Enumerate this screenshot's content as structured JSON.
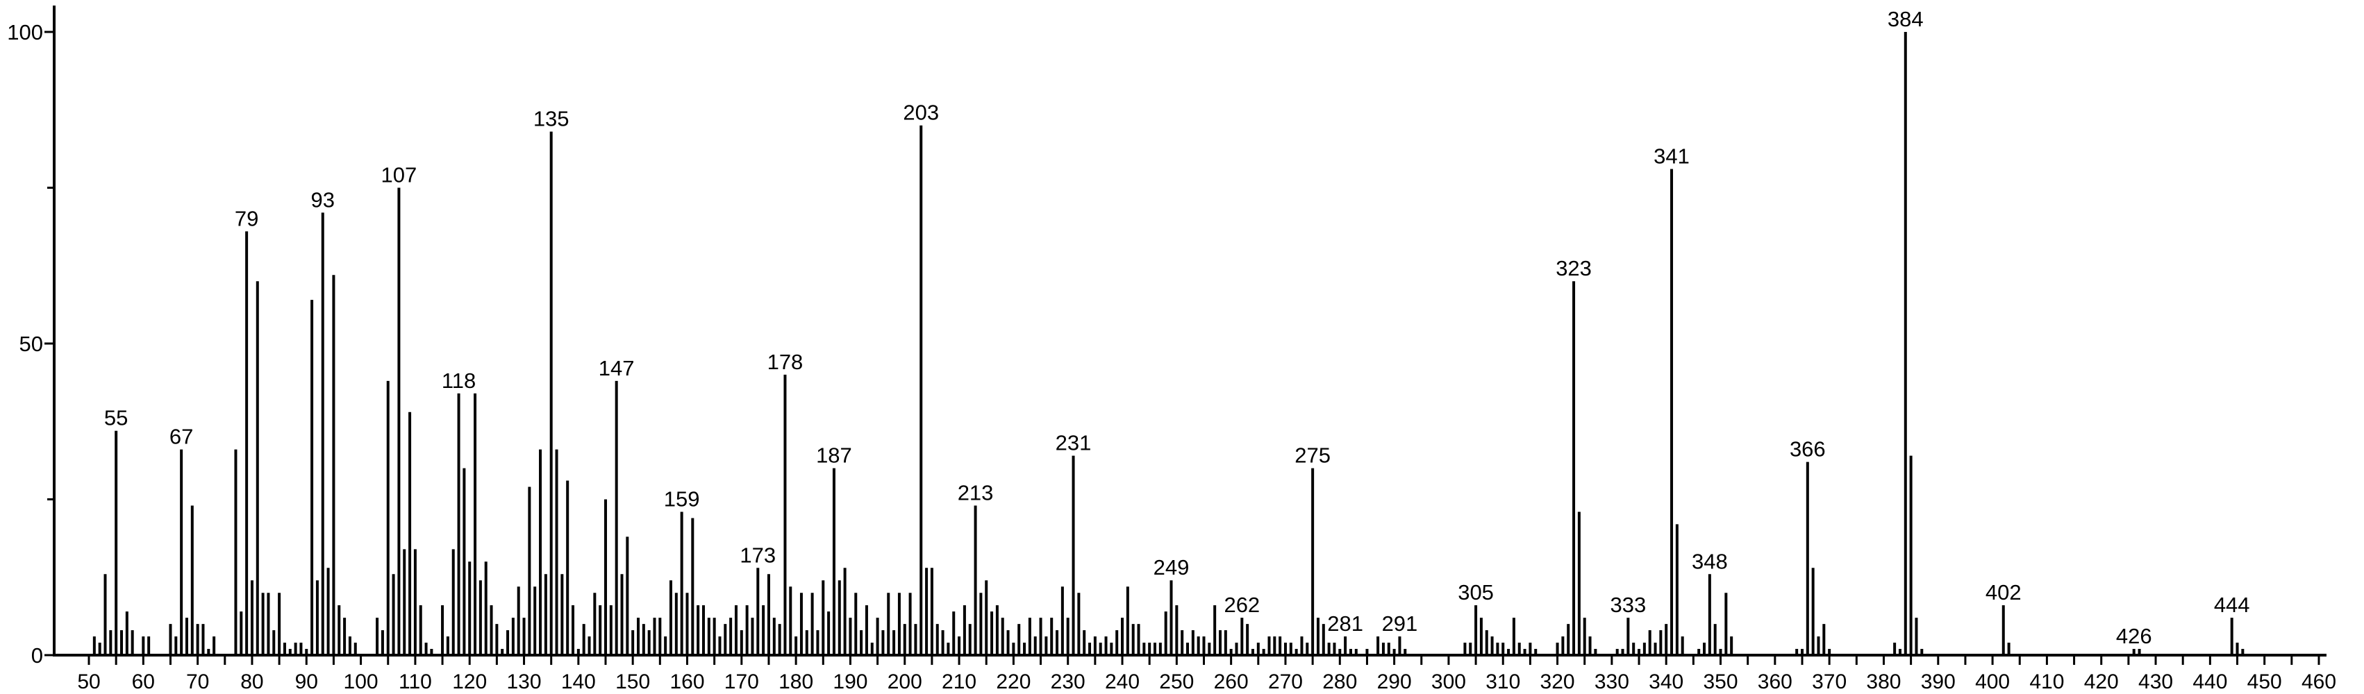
{
  "chart_data": {
    "type": "bar",
    "title": "",
    "xlabel": "",
    "ylabel": "",
    "xlim": [
      40,
      465
    ],
    "ylim": [
      0,
      100
    ],
    "grid": false,
    "legend": "none",
    "bar_color": "#000000",
    "x_ticks": [
      "50",
      "60",
      "70",
      "80",
      "90",
      "100",
      "110",
      "120",
      "130",
      "140",
      "150",
      "160",
      "170",
      "180",
      "190",
      "200",
      "210",
      "220",
      "230",
      "240",
      "250",
      "260",
      "270",
      "280",
      "290",
      "300",
      "310",
      "320",
      "330",
      "340",
      "350",
      "360",
      "370",
      "380",
      "390",
      "400",
      "410",
      "420",
      "430",
      "440",
      "450",
      "460"
    ],
    "y_ticks": [
      "0",
      "50",
      "100"
    ],
    "y_minor_ticks": [
      25,
      75
    ],
    "peaks": {
      "mz": [
        51,
        52,
        53,
        54,
        55,
        56,
        57,
        58,
        60,
        61,
        65,
        66,
        67,
        68,
        69,
        70,
        71,
        72,
        73,
        77,
        78,
        79,
        80,
        81,
        82,
        83,
        84,
        85,
        86,
        87,
        88,
        89,
        90,
        91,
        92,
        93,
        94,
        95,
        96,
        97,
        98,
        99,
        103,
        104,
        105,
        106,
        107,
        108,
        109,
        110,
        111,
        112,
        113,
        115,
        116,
        117,
        118,
        119,
        120,
        121,
        122,
        123,
        124,
        125,
        126,
        127,
        128,
        129,
        130,
        131,
        132,
        133,
        134,
        135,
        136,
        137,
        138,
        139,
        140,
        141,
        142,
        143,
        144,
        145,
        146,
        147,
        148,
        149,
        150,
        151,
        152,
        153,
        154,
        155,
        156,
        157,
        158,
        159,
        160,
        161,
        162,
        163,
        164,
        165,
        166,
        167,
        168,
        169,
        170,
        171,
        172,
        173,
        174,
        175,
        176,
        177,
        178,
        179,
        180,
        181,
        182,
        183,
        184,
        185,
        186,
        187,
        188,
        189,
        190,
        191,
        192,
        193,
        194,
        195,
        196,
        197,
        198,
        199,
        200,
        201,
        202,
        203,
        204,
        205,
        206,
        207,
        208,
        209,
        210,
        211,
        212,
        213,
        214,
        215,
        216,
        217,
        218,
        219,
        220,
        221,
        222,
        223,
        224,
        225,
        226,
        227,
        228,
        229,
        230,
        231,
        232,
        233,
        234,
        235,
        236,
        237,
        238,
        239,
        240,
        241,
        242,
        243,
        244,
        245,
        246,
        247,
        248,
        249,
        250,
        251,
        252,
        253,
        254,
        255,
        256,
        257,
        258,
        259,
        260,
        261,
        262,
        263,
        264,
        265,
        266,
        267,
        268,
        269,
        270,
        271,
        272,
        273,
        274,
        275,
        276,
        277,
        278,
        279,
        280,
        281,
        282,
        283,
        285,
        287,
        288,
        289,
        290,
        291,
        292,
        303,
        304,
        305,
        306,
        307,
        308,
        309,
        310,
        311,
        312,
        313,
        314,
        315,
        316,
        320,
        321,
        322,
        323,
        324,
        325,
        326,
        327,
        331,
        332,
        333,
        334,
        335,
        336,
        337,
        338,
        339,
        340,
        341,
        342,
        343,
        346,
        347,
        348,
        349,
        350,
        351,
        352,
        364,
        365,
        366,
        367,
        368,
        369,
        370,
        382,
        383,
        384,
        385,
        386,
        387,
        402,
        403,
        426,
        427,
        444,
        445,
        446
      ],
      "intensity": [
        3,
        2,
        13,
        4,
        36,
        4,
        7,
        4,
        3,
        3,
        5,
        3,
        33,
        6,
        24,
        5,
        5,
        1,
        3,
        33,
        7,
        68,
        12,
        60,
        10,
        10,
        4,
        10,
        2,
        1,
        2,
        2,
        1,
        57,
        12,
        71,
        14,
        61,
        8,
        6,
        3,
        2,
        6,
        4,
        44,
        13,
        75,
        17,
        39,
        17,
        8,
        2,
        1,
        8,
        3,
        17,
        42,
        30,
        15,
        42,
        12,
        15,
        8,
        5,
        1,
        4,
        6,
        11,
        6,
        27,
        11,
        33,
        13,
        84,
        33,
        13,
        28,
        8,
        1,
        5,
        3,
        10,
        8,
        25,
        8,
        44,
        13,
        19,
        4,
        6,
        5,
        4,
        6,
        6,
        3,
        12,
        10,
        23,
        10,
        22,
        8,
        8,
        6,
        6,
        3,
        5,
        6,
        8,
        4,
        8,
        6,
        14,
        8,
        13,
        6,
        5,
        45,
        11,
        3,
        10,
        4,
        10,
        4,
        12,
        7,
        30,
        12,
        14,
        6,
        10,
        4,
        8,
        2,
        6,
        4,
        10,
        4,
        10,
        5,
        10,
        5,
        85,
        14,
        14,
        5,
        4,
        2,
        7,
        3,
        8,
        5,
        24,
        10,
        12,
        7,
        8,
        6,
        4,
        2,
        5,
        2,
        6,
        3,
        6,
        3,
        6,
        4,
        11,
        6,
        32,
        10,
        4,
        2,
        3,
        2,
        3,
        2,
        4,
        6,
        11,
        5,
        5,
        2,
        2,
        2,
        2,
        7,
        12,
        8,
        4,
        2,
        4,
        3,
        3,
        2,
        8,
        4,
        4,
        1,
        2,
        6,
        5,
        1,
        2,
        1,
        3,
        3,
        3,
        2,
        2,
        1,
        3,
        2,
        30,
        6,
        5,
        2,
        2,
        1,
        3,
        1,
        1,
        1,
        3,
        2,
        2,
        1,
        3,
        1,
        2,
        2,
        8,
        6,
        4,
        3,
        2,
        2,
        1,
        6,
        2,
        1,
        2,
        1,
        2,
        3,
        5,
        60,
        23,
        6,
        3,
        1,
        1,
        1,
        6,
        2,
        1,
        2,
        4,
        2,
        4,
        5,
        78,
        21,
        3,
        1,
        2,
        13,
        5,
        1,
        10,
        3,
        1,
        1,
        31,
        14,
        3,
        5,
        1,
        2,
        1,
        100,
        32,
        6,
        1,
        8,
        2,
        1,
        1,
        6,
        2,
        1
      ]
    },
    "peak_labels": [
      "55",
      "67",
      "79",
      "93",
      "107",
      "118",
      "135",
      "147",
      "159",
      "173",
      "178",
      "187",
      "203",
      "213",
      "231",
      "249",
      "262",
      "275",
      "281",
      "291",
      "305",
      "323",
      "333",
      "341",
      "348",
      "366",
      "384",
      "402",
      "426",
      "444"
    ]
  }
}
